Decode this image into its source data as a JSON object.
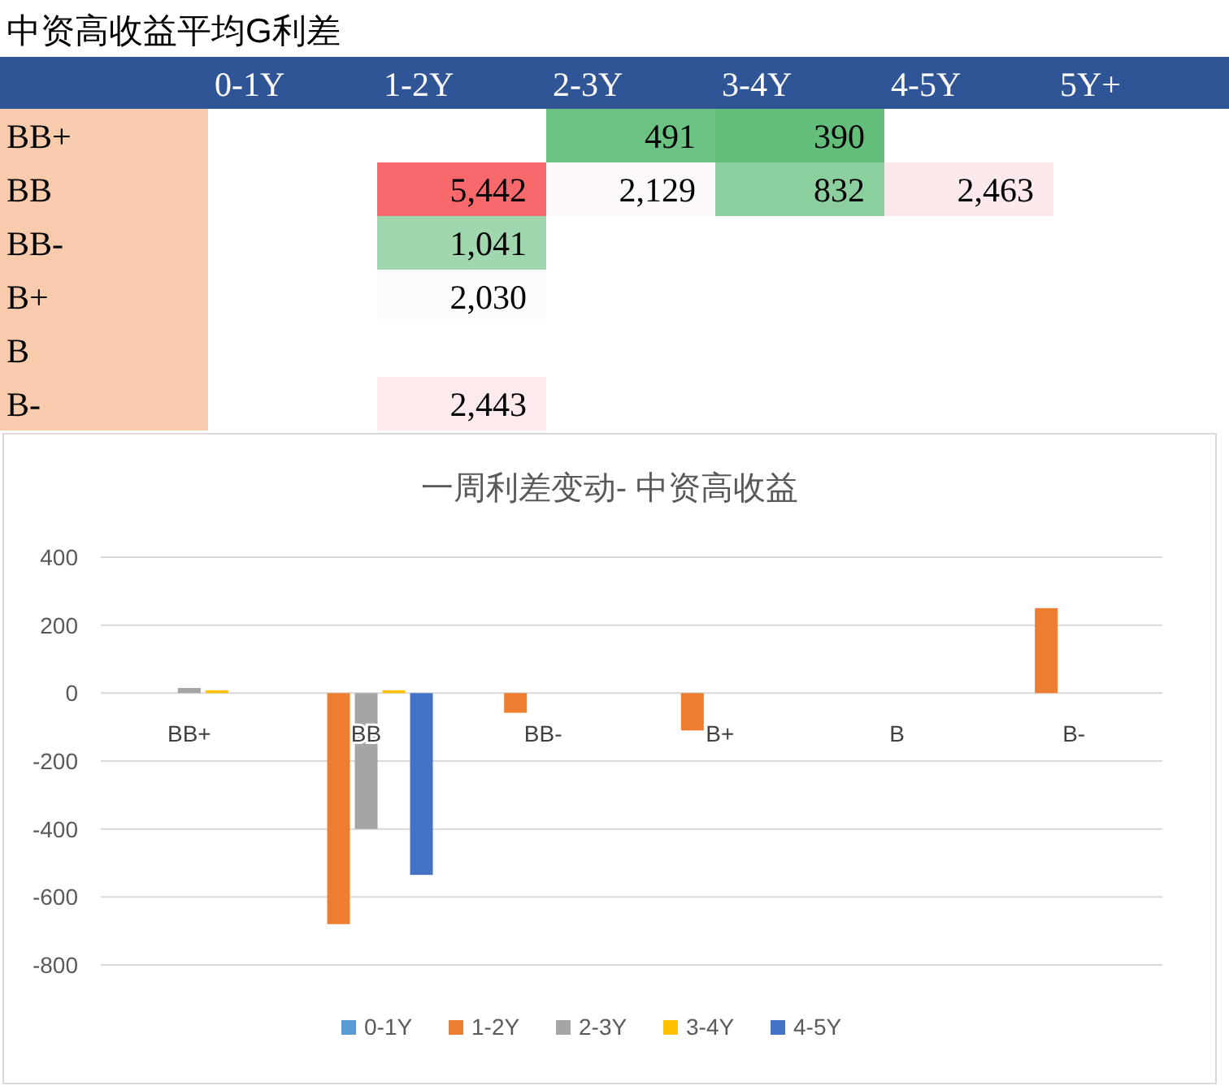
{
  "chart_data": [
    {
      "type": "heatmap",
      "title": "中资高收益平均G利差",
      "categories": [
        "0-1Y",
        "1-2Y",
        "2-3Y",
        "3-4Y",
        "4-5Y",
        "5Y+"
      ],
      "y_categories": [
        "BB+",
        "BB",
        "BB-",
        "B+",
        "B",
        "B-"
      ],
      "cells": [
        [
          null,
          null,
          491,
          390,
          null,
          null
        ],
        [
          null,
          5442,
          2129,
          832,
          2463,
          null
        ],
        [
          null,
          1041,
          null,
          null,
          null,
          null
        ],
        [
          null,
          2030,
          null,
          null,
          null,
          null
        ],
        [
          null,
          null,
          null,
          null,
          null,
          null
        ],
        [
          null,
          2443,
          null,
          null,
          null,
          null
        ]
      ],
      "cell_labels": [
        [
          null,
          null,
          "491",
          "390",
          null,
          null
        ],
        [
          null,
          "5,442",
          "2,129",
          "832",
          "2,463",
          null
        ],
        [
          null,
          "1,041",
          null,
          null,
          null,
          null
        ],
        [
          null,
          "2,030",
          null,
          null,
          null,
          null
        ],
        [
          null,
          null,
          null,
          null,
          null,
          null
        ],
        [
          null,
          "2,443",
          null,
          null,
          null,
          null
        ]
      ]
    },
    {
      "type": "bar",
      "title": "一周利差变动- 中资高收益",
      "categories": [
        "BB+",
        "BB",
        "BB-",
        "B+",
        "B",
        "B-"
      ],
      "series": [
        {
          "name": "0-1Y",
          "color": "#5b9bd5",
          "values": [
            null,
            null,
            null,
            null,
            null,
            null
          ]
        },
        {
          "name": "1-2Y",
          "color": "#ed7d31",
          "values": [
            null,
            -680,
            -58,
            -110,
            null,
            250
          ]
        },
        {
          "name": "2-3Y",
          "color": "#a5a5a5",
          "values": [
            15,
            -400,
            null,
            null,
            null,
            null
          ]
        },
        {
          "name": "3-4Y",
          "color": "#ffc000",
          "values": [
            8,
            8,
            null,
            null,
            null,
            null
          ]
        },
        {
          "name": "4-5Y",
          "color": "#4472c4",
          "values": [
            null,
            -535,
            null,
            null,
            null,
            null
          ]
        }
      ],
      "ylim": [
        -800,
        400
      ],
      "yticks": [
        -800,
        -600,
        -400,
        -200,
        0,
        200,
        400
      ],
      "grid": "y",
      "legend": "bottom"
    }
  ]
}
